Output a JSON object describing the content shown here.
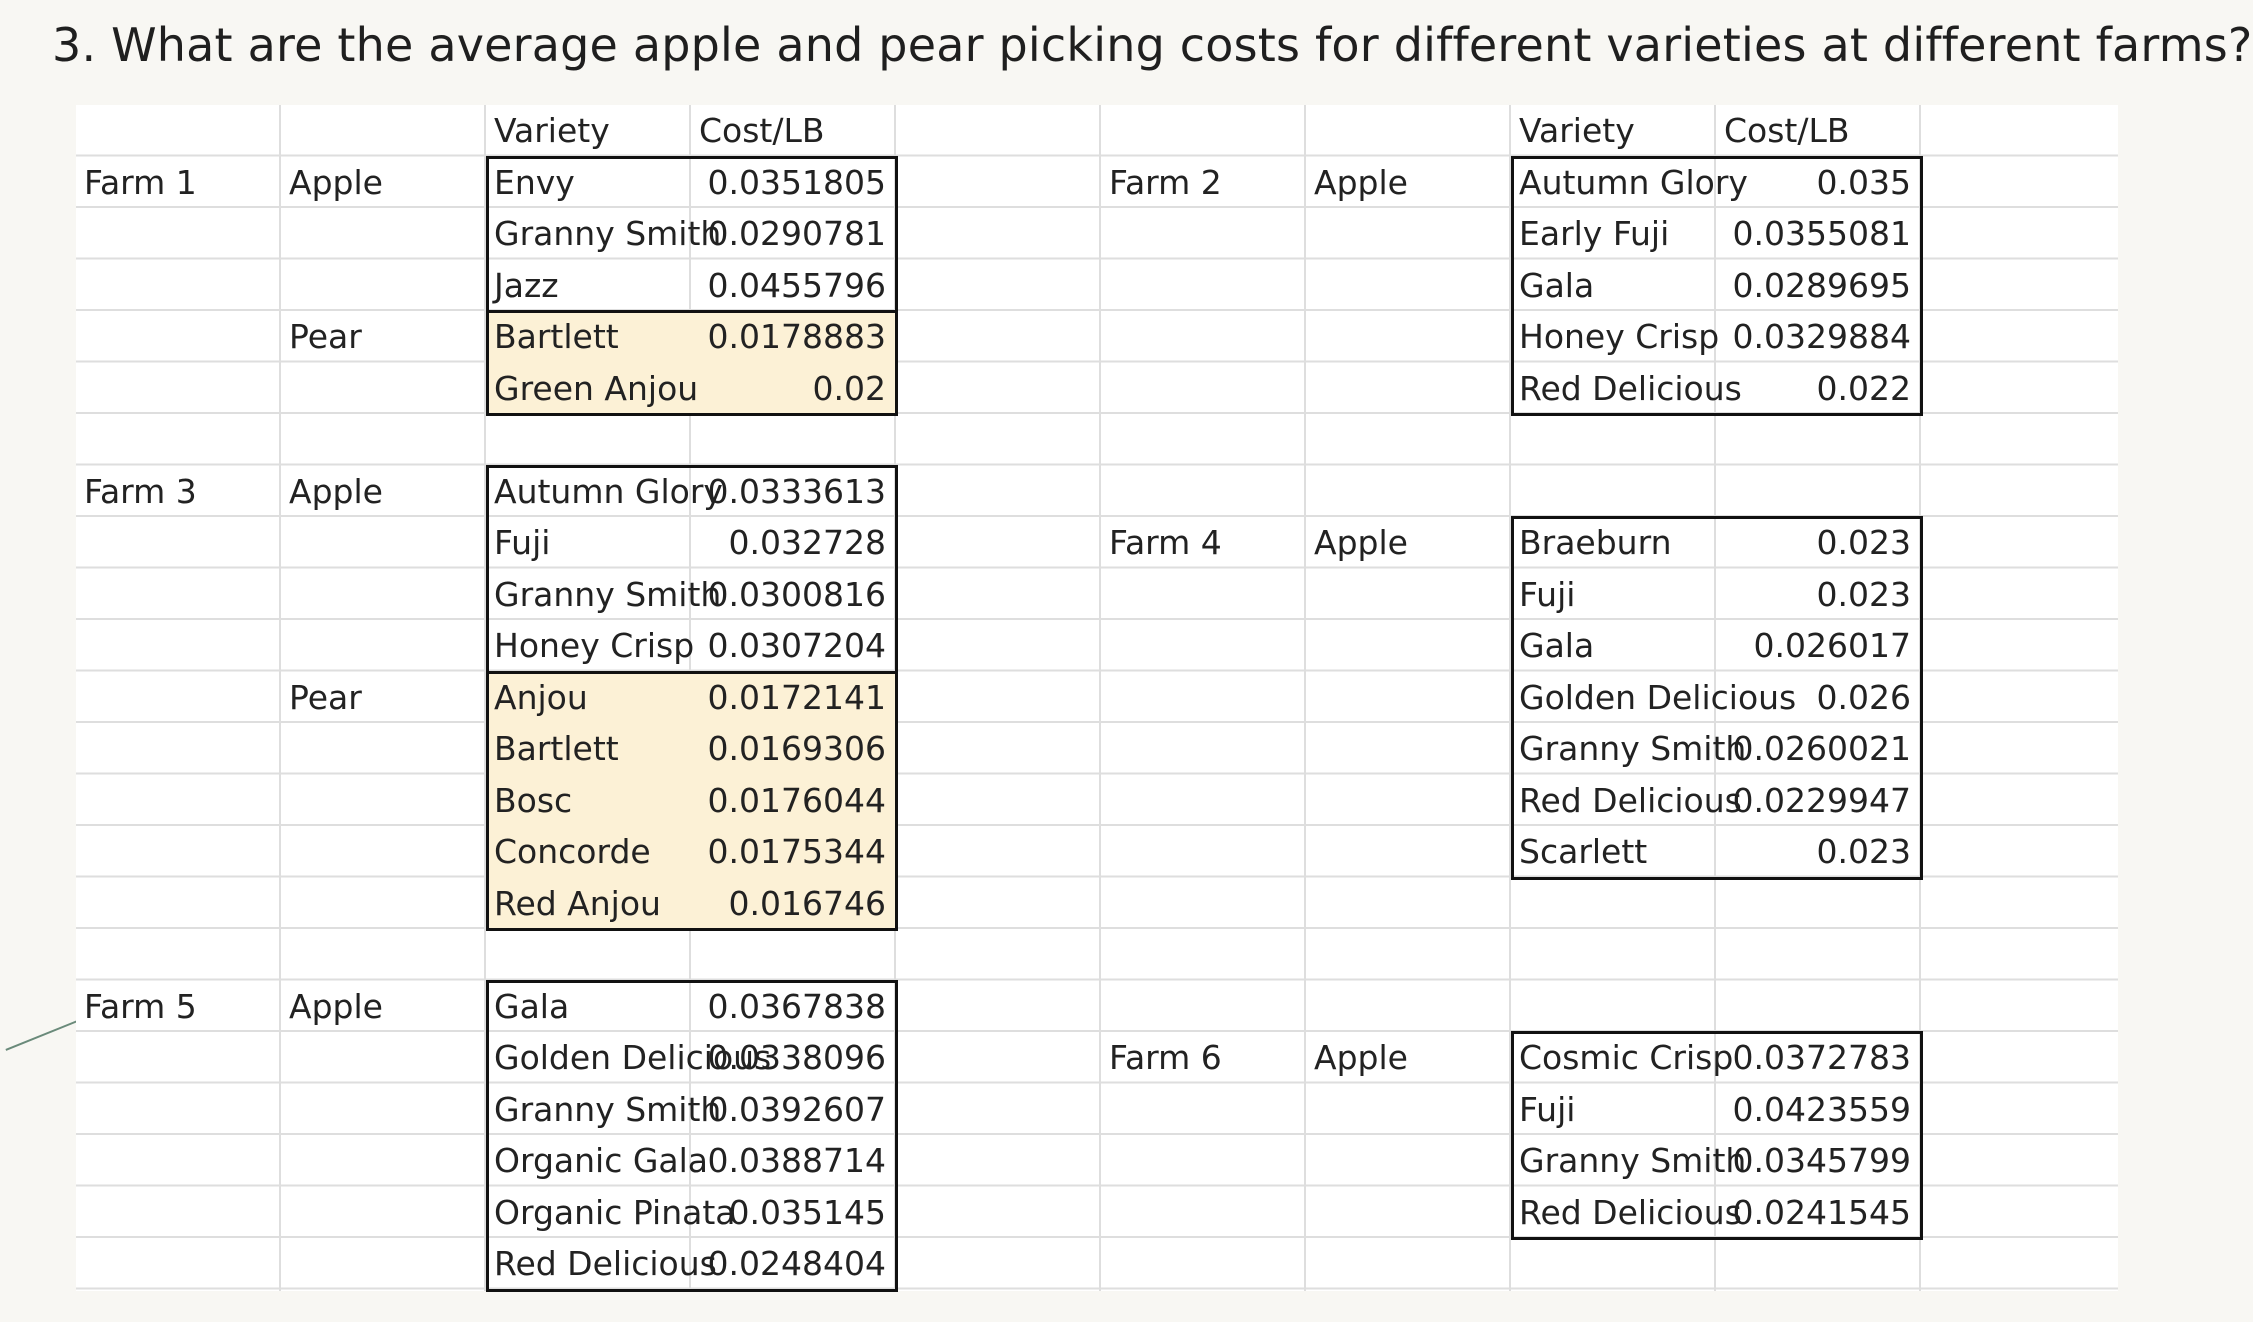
{
  "title": "3. What are the average apple and pear picking costs for different varieties at different farms?",
  "headers": {
    "variety": "Variety",
    "cost": "Cost/LB"
  },
  "farms": {
    "farm1": {
      "name": "Farm 1",
      "apple_label": "Apple",
      "pear_label": "Pear",
      "apple": [
        {
          "variety": "Envy",
          "cost": "0.0351805"
        },
        {
          "variety": "Granny Smith",
          "cost": "0.0290781"
        },
        {
          "variety": "Jazz",
          "cost": "0.0455796"
        }
      ],
      "pear": [
        {
          "variety": "Bartlett",
          "cost": "0.0178883"
        },
        {
          "variety": "Green Anjou",
          "cost": "0.02"
        }
      ]
    },
    "farm2": {
      "name": "Farm 2",
      "apple_label": "Apple",
      "apple": [
        {
          "variety": "Autumn Glory",
          "cost": "0.035"
        },
        {
          "variety": "Early Fuji",
          "cost": "0.0355081"
        },
        {
          "variety": "Gala",
          "cost": "0.0289695"
        },
        {
          "variety": "Honey Crisp",
          "cost": "0.0329884"
        },
        {
          "variety": "Red Delicious",
          "cost": "0.022"
        }
      ]
    },
    "farm3": {
      "name": "Farm 3",
      "apple_label": "Apple",
      "pear_label": "Pear",
      "apple": [
        {
          "variety": "Autumn Glory",
          "cost": "0.0333613"
        },
        {
          "variety": "Fuji",
          "cost": "0.032728"
        },
        {
          "variety": "Granny Smith",
          "cost": "0.0300816"
        },
        {
          "variety": "Honey Crisp",
          "cost": "0.0307204"
        }
      ],
      "pear": [
        {
          "variety": "Anjou",
          "cost": "0.0172141"
        },
        {
          "variety": "Bartlett",
          "cost": "0.0169306"
        },
        {
          "variety": "Bosc",
          "cost": "0.0176044"
        },
        {
          "variety": "Concorde",
          "cost": "0.0175344"
        },
        {
          "variety": "Red Anjou",
          "cost": "0.016746"
        }
      ]
    },
    "farm4": {
      "name": "Farm 4",
      "apple_label": "Apple",
      "apple": [
        {
          "variety": "Braeburn",
          "cost": "0.023"
        },
        {
          "variety": "Fuji",
          "cost": "0.023"
        },
        {
          "variety": "Gala",
          "cost": "0.026017"
        },
        {
          "variety": "Golden Delicious",
          "cost": "0.026"
        },
        {
          "variety": "Granny Smith",
          "cost": "0.0260021"
        },
        {
          "variety": "Red Delicious",
          "cost": "0.0229947"
        },
        {
          "variety": "Scarlett",
          "cost": "0.023"
        }
      ]
    },
    "farm5": {
      "name": "Farm 5",
      "apple_label": "Apple",
      "apple": [
        {
          "variety": "Gala",
          "cost": "0.0367838"
        },
        {
          "variety": "Golden Delicious",
          "cost": "0.0338096"
        },
        {
          "variety": "Granny Smith",
          "cost": "0.0392607"
        },
        {
          "variety": "Organic Gala",
          "cost": "0.0388714"
        },
        {
          "variety": "Organic Pinata",
          "cost": "0.035145"
        },
        {
          "variety": "Red Delicious",
          "cost": "0.0248404"
        }
      ]
    },
    "farm6": {
      "name": "Farm 6",
      "apple_label": "Apple",
      "apple": [
        {
          "variety": "Cosmic Crisp",
          "cost": "0.0372783"
        },
        {
          "variety": "Fuji",
          "cost": "0.0423559"
        },
        {
          "variety": "Granny Smith",
          "cost": "0.0345799"
        },
        {
          "variety": "Red Delicious",
          "cost": "0.0241545"
        }
      ]
    }
  }
}
